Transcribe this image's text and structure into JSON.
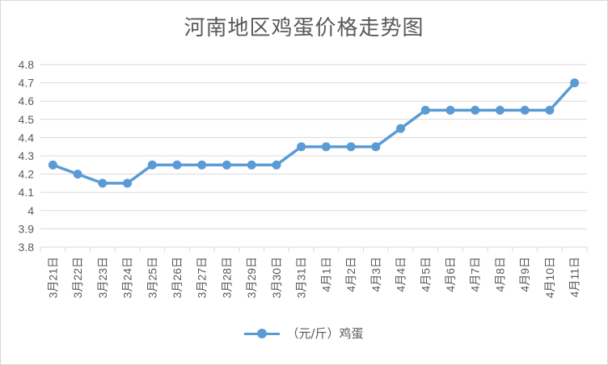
{
  "chart_data": {
    "type": "line",
    "title": "河南地区鸡蛋价格走势图",
    "categories": [
      "3月21日",
      "3月22日",
      "3月23日",
      "3月24日",
      "3月25日",
      "3月26日",
      "3月27日",
      "3月28日",
      "3月29日",
      "3月30日",
      "3月31日",
      "4月1日",
      "4月2日",
      "4月3日",
      "4月4日",
      "4月5日",
      "4月6日",
      "4月7日",
      "4月8日",
      "4月9日",
      "4月10日",
      "4月11日"
    ],
    "series": [
      {
        "name": "（元/斤）鸡蛋",
        "values": [
          4.25,
          4.2,
          4.15,
          4.15,
          4.25,
          4.25,
          4.25,
          4.25,
          4.25,
          4.25,
          4.35,
          4.35,
          4.35,
          4.35,
          4.45,
          4.55,
          4.55,
          4.55,
          4.55,
          4.55,
          4.55,
          4.7
        ]
      }
    ],
    "ylim": [
      3.8,
      4.8
    ],
    "yticks": [
      "3.8",
      "3.9",
      "4",
      "4.1",
      "4.2",
      "4.3",
      "4.4",
      "4.5",
      "4.6",
      "4.7",
      "4.8"
    ],
    "grid": true,
    "legend": "bottom",
    "xlabel": "",
    "ylabel": ""
  },
  "colors": {
    "line": "#5b9bd5",
    "grid": "#d9d9d9",
    "text": "#595959"
  }
}
